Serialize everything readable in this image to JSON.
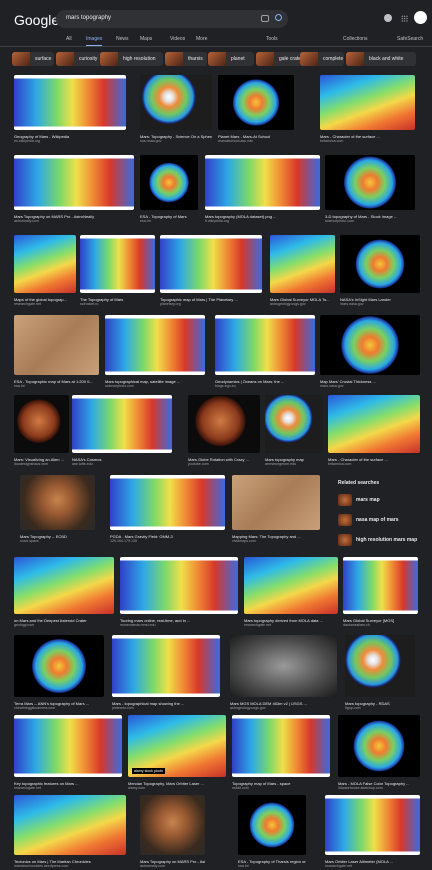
{
  "header": {
    "logo": "Google",
    "query": "mars topography",
    "tabs": [
      "All",
      "Images",
      "News",
      "Maps",
      "Videos",
      "More"
    ],
    "tools": "Tools",
    "collections": "Collections",
    "safesearch": "SafeSearch"
  },
  "chips": [
    "surface",
    "curiosity",
    "high resolution",
    "tharsis",
    "planet",
    "gale crater",
    "complete",
    "black and white"
  ],
  "results": {
    "rows": [
      {
        "items": [
          {
            "title": "Geography of Mars - Wikipedia",
            "source": "en.wikipedia.org"
          },
          {
            "title": "Mars: Topography - Science On a Sphere",
            "source": "sos.noaa.gov"
          },
          {
            "title": "Planet Mars - Mars-At School",
            "source": "marsatschool.asu.edu"
          },
          {
            "title": "Mars - Character of the surface ...",
            "source": "britannica.com"
          }
        ]
      },
      {
        "items": [
          {
            "title": "Mars Topography on MARS Pro - AstroNeally",
            "source": "astroneally.com"
          },
          {
            "title": "ESA - Topography of Mars",
            "source": "esa.int"
          },
          {
            "title": "Mars topography (MOLA dataset).png ...",
            "source": "fr.wikipedia.org"
          },
          {
            "title": "3-D topography of Mars - Stock Image ...",
            "source": "sciencephoto.com"
          }
        ]
      },
      {
        "items": [
          {
            "title": "Maps of the global topograp...",
            "source": "researchgate.net"
          },
          {
            "title": "The Topography of Mars",
            "source": "scirocket.ru"
          },
          {
            "title": "Topographic map of Mars | The Planetary ...",
            "source": "planetary.org"
          },
          {
            "title": "Mars Global Surveyor MOLA To...",
            "source": "astrogeology.usgs.gov"
          },
          {
            "title": "NASA's InSight Mars Lander",
            "source": "mars.nasa.gov"
          }
        ]
      },
      {
        "items": [
          {
            "title": "ESA - Topographic map of Mars at 1:200 0...",
            "source": "esa.int"
          },
          {
            "title": "Mars topographical map, satellite image ...",
            "source": "sciencephoto.com"
          },
          {
            "title": "Geodynamics | Oceans on Mars: the ...",
            "source": "blogs.egu.eu"
          },
          {
            "title": "Map Mars' Crustal Thickness ...",
            "source": "mars.nasa.gov"
          }
        ]
      },
      {
        "items": [
          {
            "title": "Mars: Visualizing an Alien ...",
            "source": "doudesignshaus.com"
          },
          {
            "title": "NASA's Cosmos",
            "source": "ase.tufts.edu"
          },
          {
            "title": "Mars Globe Rotation with Crazy ...",
            "source": "youtube.com"
          },
          {
            "title": "Mars topography map",
            "source": "armstrongmom.edu"
          },
          {
            "title": "Mars - Character of the surface ...",
            "source": "britannica.com"
          }
        ]
      },
      {
        "items": [
          {
            "title": "Mars Topography -- ECBD",
            "source": "room.space"
          },
          {
            "title": "PGDA - Mars Gravity Field: GMM-3",
            "source": "129.164.179.135"
          },
          {
            "title": "Mapping Mars: The Topography and ...",
            "source": "vividmaps.com"
          }
        ]
      },
      {
        "items": [
          {
            "title": "on Mars and the Deepest Asteroid Crater",
            "source": "geology.com"
          },
          {
            "title": "Touring mars online, real-time, and in ...",
            "source": "mossmaeda.mmd.edu"
          },
          {
            "title": "Mars topography derived from MOLA data ...",
            "source": "researchgate.net"
          },
          {
            "title": "Mars Global Surveyor [MGS]",
            "source": "daukanssilam.ch"
          }
        ]
      },
      {
        "items": [
          {
            "title": "Terra Mars -- ANN's topography of Mars ...",
            "source": "cheatmeggilocamera.com"
          },
          {
            "title": "Mars - topographical map showing the ...",
            "source": "pinterest.com"
          },
          {
            "title": "Mars MGS MOLA DEM 463m v2 | USGS ...",
            "source": "astrogeology.usgs.gov"
          },
          {
            "title": "Mars topography - RDAS",
            "source": "flgop.com"
          }
        ]
      },
      {
        "items": [
          {
            "title": "Key topographic features on Mars ...",
            "source": "researchgate.net"
          },
          {
            "title": "Mercian Topography, Mars Orbiter Laser ...",
            "source": "alamy.com"
          },
          {
            "title": "Topography map of Mars - space",
            "source": "reddit.com"
          },
          {
            "title": "Mars - MOLA False Color Topography ...",
            "source": "3dwarehouse.sketchup.com"
          }
        ]
      },
      {
        "items": [
          {
            "title": "Tectonics on Mars | The Martian Chronicles",
            "source": "marsianchronicles.wordpress.com"
          },
          {
            "title": "Mars Topography on MARS Pro - AstroNeally",
            "source": "astroneally.com"
          },
          {
            "title": "ESA - Topography of Tharsis region on ...",
            "source": "esa.int"
          },
          {
            "title": "Mars Orbiter Laser Altimeter (MOLA ...",
            "source": "researchgate.net"
          }
        ]
      }
    ]
  },
  "overlay": "alamy stock photo",
  "related": {
    "title": "Related searches",
    "items": [
      "mars map",
      "nasa map of mars",
      "high resolution mars map"
    ]
  }
}
